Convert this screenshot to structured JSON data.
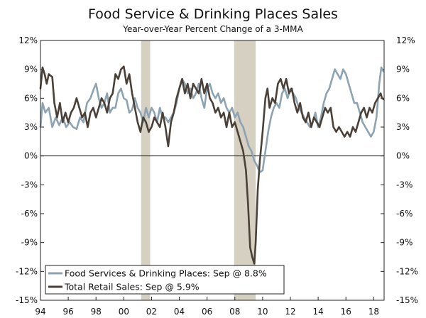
{
  "chart_data": {
    "type": "line",
    "title": "Food Service & Drinking Places Sales",
    "subtitle": "Year-over-Year Percent Change of a 3-MMA",
    "xlabel": "",
    "ylabel": "",
    "x_range": [
      1994.0,
      2018.75
    ],
    "ylim": [
      -15,
      12
    ],
    "y_ticks": [
      12,
      9,
      6,
      3,
      0,
      -3,
      -6,
      -9,
      -12,
      -15
    ],
    "y_tick_labels": [
      "12%",
      "9%",
      "6%",
      "3%",
      "0%",
      "-3%",
      "-6%",
      "-9%",
      "-12%",
      "-15%"
    ],
    "x_ticks": [
      1994,
      1996,
      1998,
      2000,
      2002,
      2004,
      2006,
      2008,
      2010,
      2012,
      2014,
      2016,
      2018
    ],
    "x_tick_labels": [
      "94",
      "96",
      "98",
      "00",
      "02",
      "04",
      "06",
      "08",
      "10",
      "12",
      "14",
      "16",
      "18"
    ],
    "recessions": [
      [
        2001.25,
        2001.9
      ],
      [
        2007.95,
        2009.5
      ]
    ],
    "zero_line": true,
    "legend": {
      "position": "bottom-left",
      "entries": [
        "Food Services & Drinking Places: Sep @ 8.8%",
        "Total Retail Sales: Sep @ 5.9%"
      ]
    },
    "series": [
      {
        "name": "Food Services & Drinking Places",
        "color": "#8ea3b2",
        "points": [
          [
            1994.0,
            3.0
          ],
          [
            1994.15,
            5.5
          ],
          [
            1994.35,
            4.5
          ],
          [
            1994.6,
            5.0
          ],
          [
            1994.85,
            3.0
          ],
          [
            1995.1,
            4.0
          ],
          [
            1995.35,
            3.2
          ],
          [
            1995.6,
            4.0
          ],
          [
            1995.85,
            3.0
          ],
          [
            1996.1,
            3.5
          ],
          [
            1996.35,
            3.0
          ],
          [
            1996.6,
            2.8
          ],
          [
            1996.85,
            4.0
          ],
          [
            1997.1,
            3.5
          ],
          [
            1997.35,
            5.5
          ],
          [
            1997.6,
            6.0
          ],
          [
            1997.85,
            7.0
          ],
          [
            1998.0,
            7.5
          ],
          [
            1998.2,
            6.0
          ],
          [
            1998.4,
            5.0
          ],
          [
            1998.6,
            5.5
          ],
          [
            1998.8,
            6.5
          ],
          [
            1999.0,
            4.5
          ],
          [
            1999.2,
            5.0
          ],
          [
            1999.4,
            5.0
          ],
          [
            1999.6,
            6.5
          ],
          [
            1999.8,
            7.0
          ],
          [
            2000.0,
            6.0
          ],
          [
            2000.2,
            5.8
          ],
          [
            2000.4,
            4.5
          ],
          [
            2000.6,
            4.8
          ],
          [
            2000.8,
            6.0
          ],
          [
            2001.0,
            5.0
          ],
          [
            2001.2,
            4.5
          ],
          [
            2001.4,
            3.5
          ],
          [
            2001.6,
            5.0
          ],
          [
            2001.8,
            4.0
          ],
          [
            2002.0,
            5.0
          ],
          [
            2002.2,
            4.5
          ],
          [
            2002.4,
            3.5
          ],
          [
            2002.6,
            5.0
          ],
          [
            2002.8,
            4.0
          ],
          [
            2003.0,
            4.0
          ],
          [
            2003.2,
            3.5
          ],
          [
            2003.4,
            4.0
          ],
          [
            2003.6,
            4.5
          ],
          [
            2003.8,
            5.5
          ],
          [
            2004.0,
            7.0
          ],
          [
            2004.2,
            8.0
          ],
          [
            2004.4,
            7.5
          ],
          [
            2004.6,
            6.5
          ],
          [
            2004.8,
            7.0
          ],
          [
            2005.0,
            6.0
          ],
          [
            2005.2,
            6.5
          ],
          [
            2005.4,
            7.5
          ],
          [
            2005.6,
            6.0
          ],
          [
            2005.8,
            5.0
          ],
          [
            2006.0,
            7.0
          ],
          [
            2006.2,
            7.5
          ],
          [
            2006.4,
            6.5
          ],
          [
            2006.6,
            6.0
          ],
          [
            2006.8,
            6.5
          ],
          [
            2007.0,
            5.5
          ],
          [
            2007.2,
            6.0
          ],
          [
            2007.4,
            5.0
          ],
          [
            2007.6,
            4.5
          ],
          [
            2007.8,
            5.0
          ],
          [
            2008.0,
            4.0
          ],
          [
            2008.2,
            4.5
          ],
          [
            2008.4,
            3.5
          ],
          [
            2008.6,
            3.0
          ],
          [
            2008.8,
            2.0
          ],
          [
            2009.0,
            1.0
          ],
          [
            2009.2,
            0.5
          ],
          [
            2009.4,
            -0.5
          ],
          [
            2009.6,
            -1.0
          ],
          [
            2009.8,
            -1.7
          ],
          [
            2010.0,
            -1.5
          ],
          [
            2010.2,
            0.5
          ],
          [
            2010.4,
            2.5
          ],
          [
            2010.6,
            4.0
          ],
          [
            2010.8,
            5.0
          ],
          [
            2011.0,
            5.5
          ],
          [
            2011.2,
            5.0
          ],
          [
            2011.4,
            6.5
          ],
          [
            2011.6,
            7.0
          ],
          [
            2011.8,
            6.0
          ],
          [
            2012.0,
            7.0
          ],
          [
            2012.2,
            6.5
          ],
          [
            2012.4,
            6.0
          ],
          [
            2012.6,
            5.0
          ],
          [
            2012.8,
            4.5
          ],
          [
            2013.0,
            4.0
          ],
          [
            2013.2,
            3.5
          ],
          [
            2013.4,
            3.0
          ],
          [
            2013.6,
            3.5
          ],
          [
            2013.8,
            4.5
          ],
          [
            2014.0,
            3.0
          ],
          [
            2014.2,
            4.0
          ],
          [
            2014.4,
            5.5
          ],
          [
            2014.6,
            6.5
          ],
          [
            2014.8,
            7.0
          ],
          [
            2015.0,
            8.0
          ],
          [
            2015.2,
            9.0
          ],
          [
            2015.4,
            8.5
          ],
          [
            2015.6,
            8.0
          ],
          [
            2015.8,
            9.0
          ],
          [
            2016.0,
            8.5
          ],
          [
            2016.2,
            7.5
          ],
          [
            2016.4,
            6.5
          ],
          [
            2016.6,
            5.5
          ],
          [
            2016.8,
            5.5
          ],
          [
            2017.0,
            4.5
          ],
          [
            2017.2,
            3.5
          ],
          [
            2017.4,
            3.0
          ],
          [
            2017.6,
            2.5
          ],
          [
            2017.8,
            2.0
          ],
          [
            2018.0,
            2.5
          ],
          [
            2018.2,
            4.0
          ],
          [
            2018.4,
            7.5
          ],
          [
            2018.55,
            9.2
          ],
          [
            2018.7,
            8.8
          ]
        ]
      },
      {
        "name": "Total Retail Sales",
        "color": "#4a4037",
        "points": [
          [
            1994.0,
            7.0
          ],
          [
            1994.15,
            9.2
          ],
          [
            1994.3,
            8.5
          ],
          [
            1994.45,
            7.5
          ],
          [
            1994.6,
            8.5
          ],
          [
            1994.85,
            8.2
          ],
          [
            1995.0,
            5.5
          ],
          [
            1995.2,
            4.0
          ],
          [
            1995.4,
            5.5
          ],
          [
            1995.6,
            3.5
          ],
          [
            1995.8,
            4.5
          ],
          [
            1996.0,
            3.5
          ],
          [
            1996.2,
            4.5
          ],
          [
            1996.4,
            5.0
          ],
          [
            1996.6,
            6.0
          ],
          [
            1996.8,
            5.0
          ],
          [
            1997.0,
            4.0
          ],
          [
            1997.2,
            4.5
          ],
          [
            1997.4,
            3.0
          ],
          [
            1997.6,
            4.5
          ],
          [
            1997.8,
            5.0
          ],
          [
            1998.0,
            4.0
          ],
          [
            1998.2,
            5.0
          ],
          [
            1998.4,
            6.0
          ],
          [
            1998.6,
            5.5
          ],
          [
            1998.8,
            4.5
          ],
          [
            1999.0,
            6.0
          ],
          [
            1999.2,
            6.5
          ],
          [
            1999.4,
            8.5
          ],
          [
            1999.6,
            8.0
          ],
          [
            1999.8,
            9.0
          ],
          [
            2000.0,
            9.3
          ],
          [
            2000.2,
            7.5
          ],
          [
            2000.4,
            8.5
          ],
          [
            2000.6,
            6.5
          ],
          [
            2000.8,
            5.0
          ],
          [
            2001.0,
            3.5
          ],
          [
            2001.2,
            2.5
          ],
          [
            2001.4,
            4.0
          ],
          [
            2001.6,
            3.5
          ],
          [
            2001.8,
            2.5
          ],
          [
            2002.0,
            3.0
          ],
          [
            2002.2,
            4.0
          ],
          [
            2002.4,
            3.5
          ],
          [
            2002.6,
            3.0
          ],
          [
            2002.8,
            4.5
          ],
          [
            2003.0,
            3.0
          ],
          [
            2003.2,
            1.0
          ],
          [
            2003.4,
            3.5
          ],
          [
            2003.6,
            4.5
          ],
          [
            2003.8,
            6.0
          ],
          [
            2004.0,
            7.0
          ],
          [
            2004.2,
            8.0
          ],
          [
            2004.4,
            6.5
          ],
          [
            2004.6,
            7.5
          ],
          [
            2004.8,
            6.0
          ],
          [
            2005.0,
            7.5
          ],
          [
            2005.2,
            7.0
          ],
          [
            2005.4,
            6.5
          ],
          [
            2005.6,
            8.0
          ],
          [
            2005.8,
            6.5
          ],
          [
            2006.0,
            7.5
          ],
          [
            2006.2,
            6.0
          ],
          [
            2006.4,
            5.5
          ],
          [
            2006.6,
            4.5
          ],
          [
            2006.8,
            5.0
          ],
          [
            2007.0,
            4.0
          ],
          [
            2007.2,
            4.5
          ],
          [
            2007.4,
            3.0
          ],
          [
            2007.6,
            4.5
          ],
          [
            2007.8,
            3.0
          ],
          [
            2008.0,
            3.5
          ],
          [
            2008.2,
            2.5
          ],
          [
            2008.4,
            1.5
          ],
          [
            2008.6,
            0.5
          ],
          [
            2008.8,
            -1.5
          ],
          [
            2008.95,
            -5.0
          ],
          [
            2009.1,
            -9.5
          ],
          [
            2009.25,
            -10.5
          ],
          [
            2009.4,
            -11.2
          ],
          [
            2009.5,
            -9.0
          ],
          [
            2009.65,
            -3.5
          ],
          [
            2009.8,
            -0.5
          ],
          [
            2010.0,
            2.5
          ],
          [
            2010.2,
            6.0
          ],
          [
            2010.35,
            7.0
          ],
          [
            2010.5,
            5.0
          ],
          [
            2010.7,
            6.0
          ],
          [
            2010.9,
            5.5
          ],
          [
            2011.1,
            7.5
          ],
          [
            2011.3,
            8.0
          ],
          [
            2011.5,
            7.0
          ],
          [
            2011.7,
            8.0
          ],
          [
            2011.9,
            6.5
          ],
          [
            2012.1,
            7.0
          ],
          [
            2012.3,
            5.5
          ],
          [
            2012.5,
            4.5
          ],
          [
            2012.7,
            5.5
          ],
          [
            2012.9,
            4.0
          ],
          [
            2013.1,
            3.5
          ],
          [
            2013.3,
            4.5
          ],
          [
            2013.5,
            3.0
          ],
          [
            2013.7,
            4.0
          ],
          [
            2013.9,
            3.5
          ],
          [
            2014.1,
            3.0
          ],
          [
            2014.3,
            4.0
          ],
          [
            2014.5,
            5.0
          ],
          [
            2014.7,
            4.5
          ],
          [
            2014.9,
            5.0
          ],
          [
            2015.1,
            3.0
          ],
          [
            2015.3,
            2.5
          ],
          [
            2015.5,
            3.0
          ],
          [
            2015.7,
            2.5
          ],
          [
            2015.9,
            2.0
          ],
          [
            2016.1,
            2.5
          ],
          [
            2016.3,
            2.0
          ],
          [
            2016.5,
            3.0
          ],
          [
            2016.7,
            2.5
          ],
          [
            2016.9,
            3.5
          ],
          [
            2017.1,
            4.5
          ],
          [
            2017.3,
            5.0
          ],
          [
            2017.5,
            4.0
          ],
          [
            2017.7,
            5.0
          ],
          [
            2017.9,
            4.5
          ],
          [
            2018.1,
            5.5
          ],
          [
            2018.3,
            6.0
          ],
          [
            2018.5,
            6.5
          ],
          [
            2018.6,
            6.0
          ],
          [
            2018.7,
            5.9
          ]
        ]
      }
    ]
  }
}
